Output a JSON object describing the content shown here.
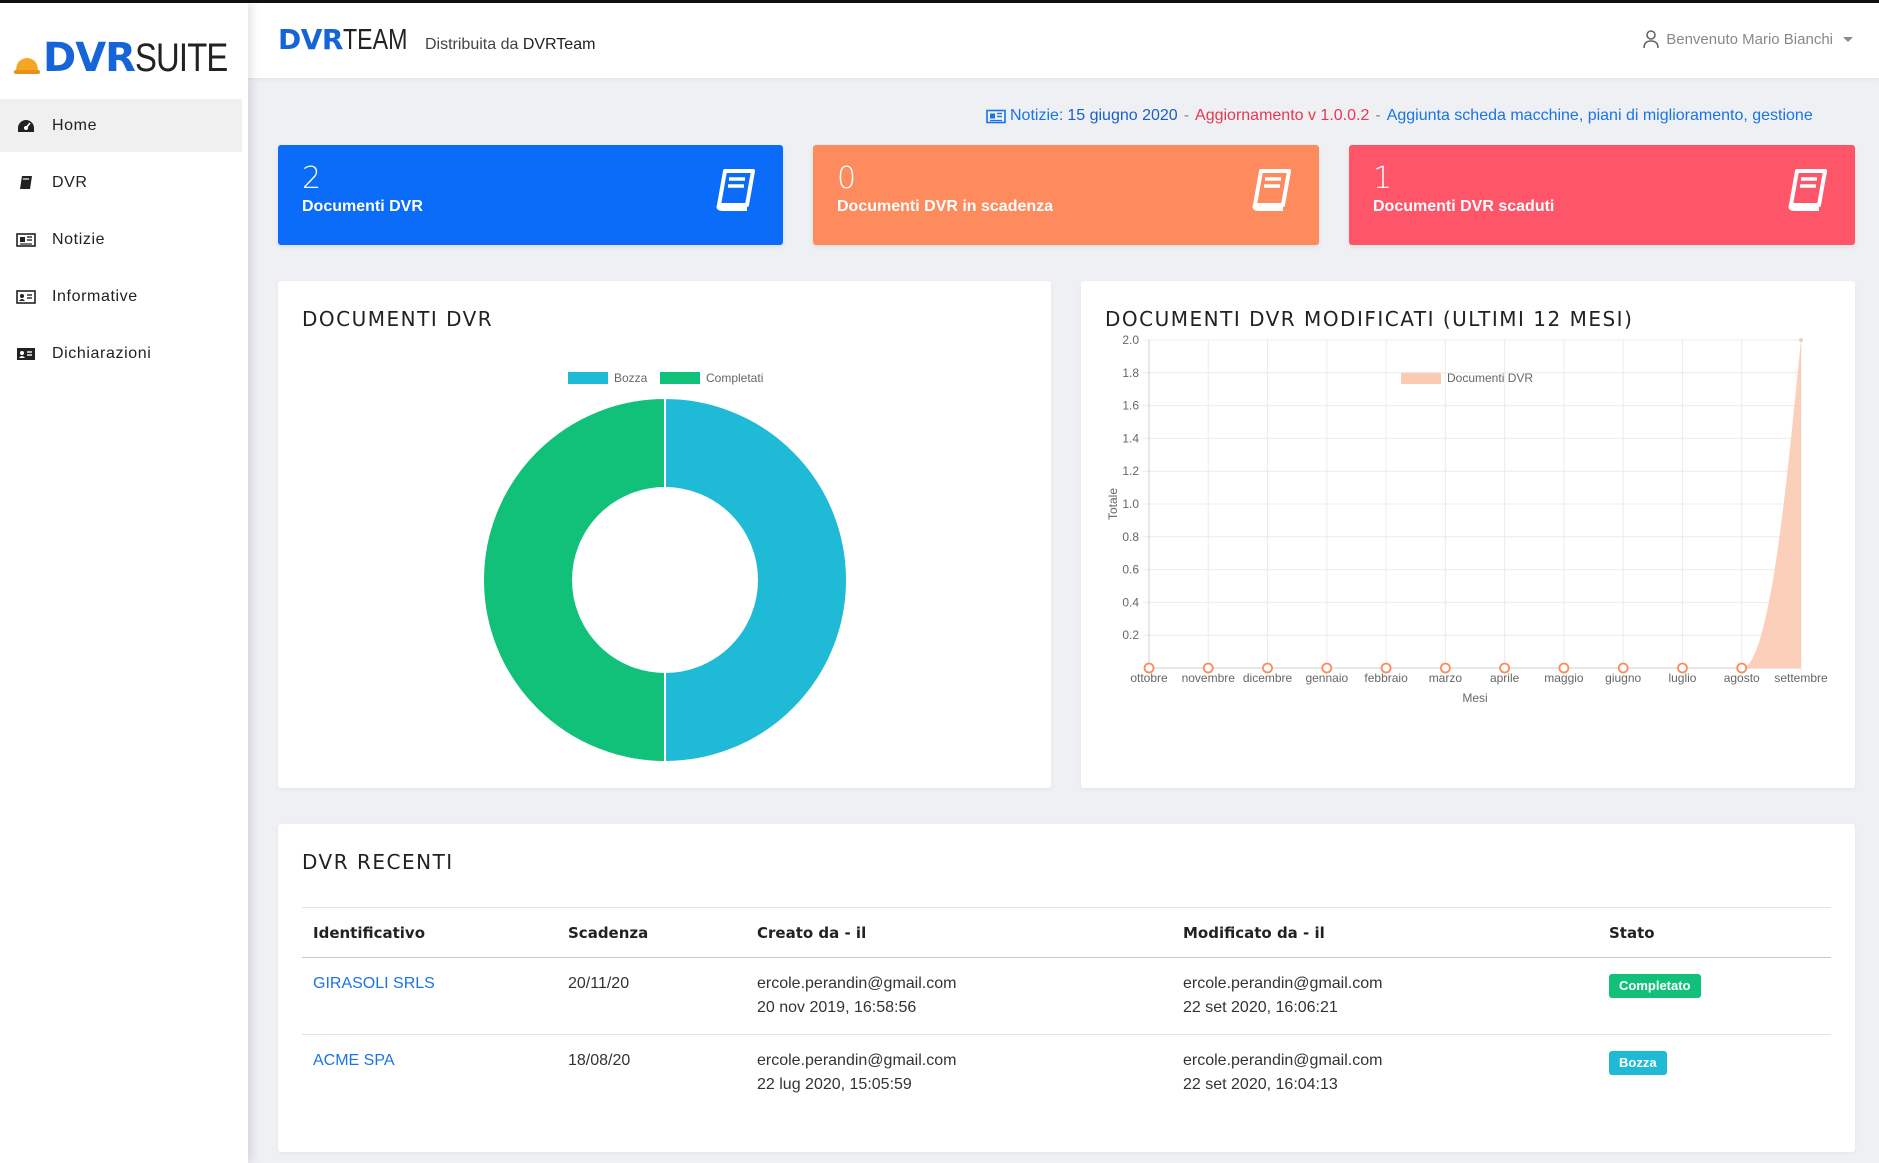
{
  "app": {
    "logo_main": "DVR",
    "logo_secondary": "SUITE",
    "brand_main": "DVR",
    "brand_secondary": "TEAM",
    "brand_distributed_label": "Distribuita da",
    "brand_distributed_by": "DVRTeam"
  },
  "sidebar": {
    "items": [
      {
        "label": "Home",
        "icon": "dashboard-icon",
        "active": true
      },
      {
        "label": "DVR",
        "icon": "book-icon"
      },
      {
        "label": "Notizie",
        "icon": "newspaper-icon"
      },
      {
        "label": "Informative",
        "icon": "id-card-icon"
      },
      {
        "label": "Dichiarazioni",
        "icon": "contact-card-icon"
      }
    ]
  },
  "header": {
    "user_greeting": "Benvenuto Mario Bianchi"
  },
  "news": {
    "label": "Notizie:",
    "date": "15 giugno 2020",
    "separator": "-",
    "update": "Aggiornamento v 1.0.0.2",
    "message": "Aggiunta scheda macchine, piani di miglioramento, gestione"
  },
  "stats": [
    {
      "value": "2",
      "label": "Documenti DVR",
      "color": "#0b6cf9"
    },
    {
      "value": "0",
      "label": "Documenti DVR in scadenza",
      "color": "#fd8b5e"
    },
    {
      "value": "1",
      "label": "Documenti DVR scaduti",
      "color": "#fe5668"
    }
  ],
  "donut": {
    "title": "DOCUMENTI DVR"
  },
  "area": {
    "title": "DOCUMENTI DVR MODIFICATI (ULTIMI 12 MESI)"
  },
  "chart_data": [
    {
      "type": "pie",
      "variant": "doughnut",
      "title": "DOCUMENTI DVR",
      "legend_position": "top",
      "categories": [
        "Bozza",
        "Completati"
      ],
      "values": [
        1,
        1
      ],
      "colors": [
        "#1fbad6",
        "#11c17a"
      ]
    },
    {
      "type": "area",
      "title": "DOCUMENTI DVR MODIFICATI (ULTIMI 12 MESI)",
      "xlabel": "Mesi",
      "ylabel": "Totale",
      "legend_position": "top",
      "categories": [
        "ottobre",
        "novembre",
        "dicembre",
        "gennaio",
        "febbraio",
        "marzo",
        "aprile",
        "maggio",
        "giugno",
        "luglio",
        "agosto",
        "settembre"
      ],
      "series": [
        {
          "name": "Documenti DVR",
          "values": [
            0,
            0,
            0,
            0,
            0,
            0,
            0,
            0,
            0,
            0,
            0,
            2
          ],
          "color": "#fccab2"
        }
      ],
      "ylim": [
        0,
        2
      ],
      "yticks": [
        "2.0",
        "1.8",
        "1.6",
        "1.4",
        "1.2",
        "1.0",
        "0.8",
        "0.6",
        "0.4",
        "0.2"
      ],
      "grid": true
    }
  ],
  "recent": {
    "title": "DVR RECENTI",
    "columns": [
      "Identificativo",
      "Scadenza",
      "Creato da - il",
      "Modificato da - il",
      "Stato"
    ],
    "rows": [
      {
        "id": "GIRASOLI SRLS",
        "scadenza": "20/11/20",
        "creato_by": "ercole.perandin@gmail.com",
        "creato_at": "20 nov 2019, 16:58:56",
        "modificato_by": "ercole.perandin@gmail.com",
        "modificato_at": "22 set 2020, 16:06:21",
        "stato": "Completato",
        "stato_color": "#11c17a"
      },
      {
        "id": "ACME SPA",
        "scadenza": "18/08/20",
        "creato_by": "ercole.perandin@gmail.com",
        "creato_at": "22 lug 2020, 15:05:59",
        "modificato_by": "ercole.perandin@gmail.com",
        "modificato_at": "22 set 2020, 16:04:13",
        "stato": "Bozza",
        "stato_color": "#1fbad6"
      }
    ]
  }
}
